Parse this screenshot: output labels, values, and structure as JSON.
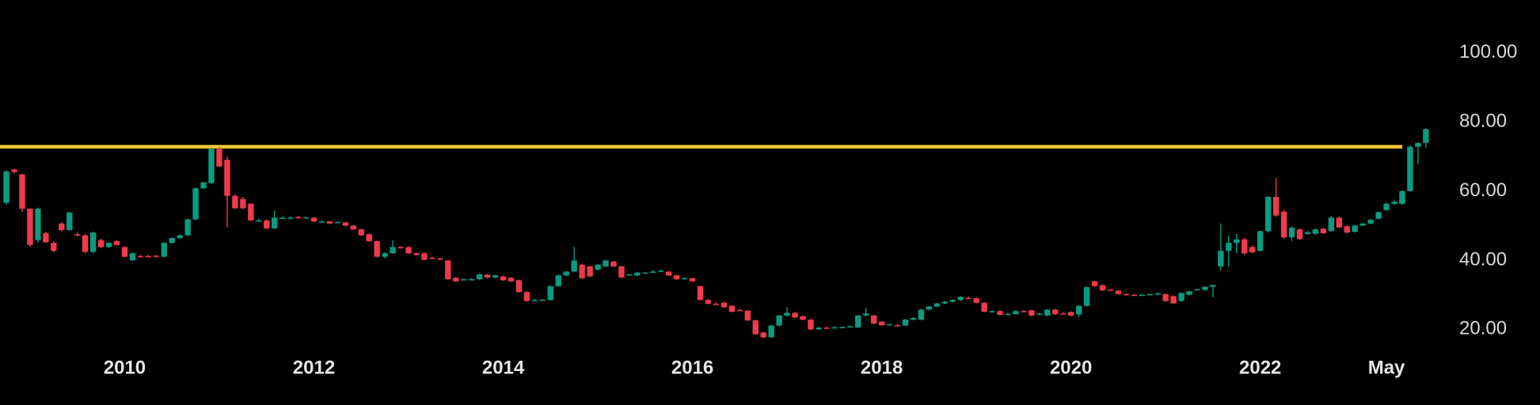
{
  "chart_data": {
    "type": "candlestick",
    "categories": [
      null,
      null,
      null,
      null,
      null,
      null,
      null,
      null,
      null,
      null,
      null,
      null,
      null,
      null,
      null,
      "2010",
      null,
      null,
      null,
      null,
      null,
      null,
      null,
      null,
      null,
      null,
      null,
      null,
      null,
      null,
      null,
      null,
      null,
      null,
      null,
      null,
      null,
      null,
      null,
      "2012",
      null,
      null,
      null,
      null,
      null,
      null,
      null,
      null,
      null,
      null,
      null,
      null,
      null,
      null,
      null,
      null,
      null,
      null,
      null,
      null,
      null,
      null,
      null,
      "2014",
      null,
      null,
      null,
      null,
      null,
      null,
      null,
      null,
      null,
      null,
      null,
      null,
      null,
      null,
      null,
      null,
      null,
      null,
      null,
      null,
      null,
      null,
      null,
      "2016",
      null,
      null,
      null,
      null,
      null,
      null,
      null,
      null,
      null,
      null,
      null,
      null,
      null,
      null,
      null,
      null,
      null,
      null,
      null,
      null,
      null,
      null,
      null,
      "2018",
      null,
      null,
      null,
      null,
      null,
      null,
      null,
      null,
      null,
      null,
      null,
      null,
      null,
      null,
      null,
      null,
      null,
      null,
      null,
      null,
      null,
      null,
      null,
      "2020",
      null,
      null,
      null,
      null,
      null,
      null,
      null,
      null,
      null,
      null,
      null,
      null,
      null,
      null,
      null,
      null,
      null,
      null,
      null,
      null,
      null,
      null,
      null,
      "2022",
      null,
      null,
      null,
      null,
      null,
      null,
      null,
      null,
      null,
      null,
      null,
      null,
      null,
      null,
      null,
      "May",
      null,
      null,
      null,
      null,
      null
    ],
    "ohlc": [
      [
        56.6,
        66,
        56,
        65.7
      ],
      [
        66.2,
        66.5,
        65,
        65.5
      ],
      [
        64.8,
        65,
        54,
        54.9
      ],
      [
        54.9,
        55,
        43.8,
        44.4
      ],
      [
        45.8,
        55.2,
        45,
        54.9
      ],
      [
        47.8,
        48.2,
        45,
        45.2
      ],
      [
        45,
        45.5,
        42.3,
        42.7
      ],
      [
        50.6,
        51,
        48.3,
        48.7
      ],
      [
        48.7,
        54,
        48.5,
        53.8
      ],
      [
        47.5,
        48,
        46.8,
        47.2
      ],
      [
        47.2,
        47.5,
        42,
        42.4
      ],
      [
        42.4,
        48.3,
        42,
        48
      ],
      [
        45.8,
        46.2,
        43.5,
        43.8
      ],
      [
        43.8,
        45.3,
        43.5,
        45
      ],
      [
        45.5,
        45.8,
        44.2,
        44.4
      ],
      [
        43.8,
        44,
        40.8,
        41
      ],
      [
        40,
        42.3,
        39.8,
        42
      ],
      [
        41.2,
        41.5,
        40.8,
        41
      ],
      [
        41.2,
        41.6,
        40.8,
        41
      ],
      [
        41.3,
        41.5,
        40.8,
        41
      ],
      [
        41,
        45.2,
        40.8,
        45
      ],
      [
        45,
        46.6,
        44.8,
        46.4
      ],
      [
        46.4,
        47.5,
        46.2,
        47.2
      ],
      [
        47.2,
        52,
        47,
        51.8
      ],
      [
        51.8,
        61,
        51.5,
        60.8
      ],
      [
        60.8,
        62.7,
        60.5,
        62.5
      ],
      [
        62.3,
        72.5,
        62,
        72.2
      ],
      [
        72.2,
        72.8,
        66.9,
        67.1
      ],
      [
        69,
        70,
        49.5,
        58.6
      ],
      [
        58.6,
        59,
        54.8,
        55
      ],
      [
        57.7,
        58.3,
        54.8,
        55
      ],
      [
        56.3,
        56.5,
        51.3,
        51.5
      ],
      [
        51.5,
        52,
        51.2,
        51.5
      ],
      [
        51.5,
        51.8,
        49,
        49.2
      ],
      [
        49.2,
        54.3,
        49,
        52.3
      ],
      [
        52.3,
        52.6,
        52,
        52.3
      ],
      [
        52.3,
        52.7,
        51.9,
        52.3
      ],
      [
        52.5,
        52.8,
        52,
        52.2
      ],
      [
        52.3,
        52.6,
        52,
        52.4
      ],
      [
        52.3,
        52.5,
        51,
        51.2
      ],
      [
        51.2,
        51.5,
        50.9,
        51.2
      ],
      [
        51.2,
        51.4,
        50.4,
        50.6
      ],
      [
        50.8,
        51.3,
        50.7,
        51
      ],
      [
        50.9,
        51.1,
        49.8,
        50
      ],
      [
        50,
        50.2,
        48.7,
        48.9
      ],
      [
        48.9,
        49.1,
        47,
        47.2
      ],
      [
        47.5,
        47.7,
        45.3,
        45.5
      ],
      [
        45.5,
        45.7,
        40.8,
        41
      ],
      [
        41,
        42.3,
        40.5,
        42
      ],
      [
        42,
        45.8,
        41.8,
        43.8
      ],
      [
        43.8,
        44,
        43.4,
        43.7
      ],
      [
        43.8,
        44,
        41.8,
        42
      ],
      [
        42,
        42.2,
        41.3,
        41.5
      ],
      [
        42,
        42.3,
        40,
        40.1
      ],
      [
        40.7,
        41,
        40.4,
        40.6
      ],
      [
        40.5,
        40.7,
        40.1,
        40.3
      ],
      [
        39.9,
        40.1,
        34.3,
        34.5
      ],
      [
        34.9,
        35.2,
        33.7,
        33.9
      ],
      [
        34.4,
        34.7,
        34.2,
        34.5
      ],
      [
        34.5,
        34.8,
        34.2,
        34.5
      ],
      [
        34.5,
        36.1,
        34.3,
        35.9
      ],
      [
        35.8,
        36,
        34.8,
        35
      ],
      [
        35,
        35.8,
        34.8,
        35.6
      ],
      [
        35.3,
        35.5,
        34,
        34.2
      ],
      [
        34.9,
        35.1,
        33.7,
        33.9
      ],
      [
        34.2,
        34.4,
        30.6,
        30.8
      ],
      [
        30.8,
        31,
        28,
        28.2
      ],
      [
        28.3,
        28.7,
        28.1,
        28.5
      ],
      [
        28.5,
        28.8,
        28.2,
        28.6
      ],
      [
        28.5,
        32.7,
        28.3,
        32.5
      ],
      [
        32.5,
        35.8,
        32.3,
        35.6
      ],
      [
        35.6,
        36.9,
        35.4,
        36.7
      ],
      [
        36.7,
        43.8,
        36.5,
        39.9
      ],
      [
        38.7,
        39,
        34.6,
        34.8
      ],
      [
        38.2,
        38.4,
        35.1,
        35.3
      ],
      [
        37.3,
        38.9,
        37,
        38.7
      ],
      [
        38.2,
        40.1,
        38,
        39.9
      ],
      [
        39.6,
        39.8,
        38,
        38.2
      ],
      [
        38.2,
        38.4,
        34.8,
        35
      ],
      [
        35.8,
        36.1,
        35.6,
        35.9
      ],
      [
        35.6,
        36.6,
        35.4,
        36.4
      ],
      [
        36.3,
        36.6,
        36.1,
        36.4
      ],
      [
        36.5,
        37.2,
        36.3,
        36.7
      ],
      [
        36.7,
        37.3,
        36.5,
        37
      ],
      [
        36.7,
        36.9,
        35.4,
        35.6
      ],
      [
        35.6,
        35.8,
        34.3,
        34.5
      ],
      [
        34.8,
        35,
        34.6,
        34.8
      ],
      [
        34.8,
        35,
        33.7,
        33.9
      ],
      [
        32.5,
        32.7,
        28.3,
        28.5
      ],
      [
        28.5,
        28.7,
        27.2,
        27.4
      ],
      [
        27.4,
        27.8,
        27.1,
        27.3
      ],
      [
        27.7,
        28,
        26.2,
        26.4
      ],
      [
        26.8,
        27,
        24.9,
        25.1
      ],
      [
        25.6,
        25.9,
        25.3,
        25.5
      ],
      [
        25.4,
        25.6,
        22.4,
        22.6
      ],
      [
        22.6,
        22.8,
        18.4,
        18.6
      ],
      [
        19.1,
        19.3,
        17.5,
        17.7
      ],
      [
        17.7,
        21.3,
        17.5,
        21.1
      ],
      [
        21.1,
        24.2,
        20.9,
        24
      ],
      [
        24,
        26.4,
        23.8,
        24.8
      ],
      [
        24.8,
        25,
        23.2,
        23.4
      ],
      [
        23.8,
        24,
        22.6,
        22.8
      ],
      [
        22.8,
        23,
        19.8,
        20
      ],
      [
        20,
        20.7,
        19.8,
        20.5
      ],
      [
        20.5,
        20.8,
        20.2,
        20.4
      ],
      [
        20.5,
        20.9,
        20.3,
        20.6
      ],
      [
        20.6,
        20.9,
        20.4,
        20.7
      ],
      [
        20.7,
        21.1,
        20.5,
        20.9
      ],
      [
        20.6,
        24.2,
        20.4,
        24
      ],
      [
        24,
        26.3,
        23.8,
        24.6
      ],
      [
        24,
        24.2,
        21.5,
        21.7
      ],
      [
        22.2,
        22.4,
        21,
        21.2
      ],
      [
        21.4,
        21.7,
        21.2,
        21.5
      ],
      [
        21.2,
        21.5,
        20.8,
        21.1
      ],
      [
        21.1,
        23,
        20.9,
        22.8
      ],
      [
        22.8,
        23.5,
        22.6,
        23.3
      ],
      [
        22.8,
        26,
        22.6,
        25.7
      ],
      [
        25.7,
        26.8,
        25.5,
        26.6
      ],
      [
        26.6,
        27.7,
        26.4,
        27.5
      ],
      [
        27.5,
        28.2,
        27.3,
        28
      ],
      [
        28,
        28.7,
        27.8,
        28.5
      ],
      [
        28.5,
        29.6,
        28.3,
        29.4
      ],
      [
        29.1,
        29.5,
        28.8,
        29
      ],
      [
        29,
        29.2,
        27.5,
        27.7
      ],
      [
        27.7,
        27.9,
        24.9,
        25.1
      ],
      [
        25.1,
        25.5,
        24.8,
        25.3
      ],
      [
        25.3,
        25.5,
        24,
        24.2
      ],
      [
        24.4,
        24.7,
        24.2,
        24.5
      ],
      [
        24.4,
        25.5,
        24.2,
        25.3
      ],
      [
        25.3,
        25.6,
        25,
        25.2
      ],
      [
        25.5,
        25.7,
        23.8,
        24
      ],
      [
        24.4,
        24.8,
        24.2,
        24.6
      ],
      [
        24,
        25.9,
        23.8,
        25.7
      ],
      [
        25.7,
        25.9,
        24.2,
        24.4
      ],
      [
        24.6,
        24.9,
        24.3,
        24.5
      ],
      [
        25,
        25.2,
        23.8,
        24
      ],
      [
        24.3,
        27,
        23.5,
        26.8
      ],
      [
        26.8,
        32.4,
        26.6,
        32.2
      ],
      [
        33.9,
        34.1,
        32.3,
        32.5
      ],
      [
        32.8,
        33,
        31.1,
        31.3
      ],
      [
        31.5,
        31.7,
        31.2,
        31.4
      ],
      [
        31.2,
        31.4,
        30,
        30.2
      ],
      [
        30.2,
        30.5,
        30,
        30.1
      ],
      [
        30,
        30.3,
        29.8,
        29.9
      ],
      [
        29.9,
        30.2,
        29.7,
        30
      ],
      [
        30.1,
        30.3,
        29.8,
        30.2
      ],
      [
        30.1,
        30.6,
        29.9,
        30.4
      ],
      [
        30.2,
        30.4,
        28,
        28.2
      ],
      [
        29.6,
        29.8,
        27.3,
        27.5
      ],
      [
        28.2,
        30.7,
        28,
        30.5
      ],
      [
        30,
        31.2,
        29.8,
        31
      ],
      [
        31.4,
        31.8,
        31.2,
        31.6
      ],
      [
        31.4,
        32.5,
        31.2,
        32.3
      ],
      [
        32.3,
        33,
        29.3,
        32.8
      ],
      [
        38.2,
        50.6,
        37,
        42.7
      ],
      [
        42.7,
        47.1,
        38,
        45
      ],
      [
        45,
        47.5,
        42,
        46
      ],
      [
        46,
        46.5,
        41.5,
        42
      ],
      [
        43.8,
        44.3,
        42,
        42.3
      ],
      [
        42.7,
        48.6,
        42.5,
        48.4
      ],
      [
        48.4,
        58.5,
        48,
        58.3
      ],
      [
        58.3,
        63.7,
        52.5,
        52.9
      ],
      [
        54,
        54.5,
        46.2,
        46.6
      ],
      [
        46.6,
        49.8,
        45.6,
        49.4
      ],
      [
        48.9,
        49.2,
        45.9,
        46.1
      ],
      [
        47.6,
        48.5,
        47.3,
        48.1
      ],
      [
        47.6,
        49.2,
        47.3,
        48.9
      ],
      [
        49.1,
        49.3,
        47.6,
        47.8
      ],
      [
        48.4,
        52.8,
        48.2,
        52.3
      ],
      [
        52.3,
        52.6,
        49.3,
        49.5
      ],
      [
        49.8,
        50,
        47.8,
        48
      ],
      [
        48.2,
        50.3,
        48,
        50
      ],
      [
        50,
        50.9,
        49.8,
        50.6
      ],
      [
        50.6,
        51.9,
        50.4,
        51.7
      ],
      [
        52,
        54.1,
        51.8,
        53.9
      ],
      [
        54.5,
        56.7,
        54.3,
        56.3
      ],
      [
        56.3,
        57.5,
        56,
        56.9
      ],
      [
        56.3,
        60.2,
        56,
        60
      ],
      [
        60,
        73.2,
        59.8,
        72.8
      ],
      [
        72.8,
        74.1,
        67.8,
        73.9
      ],
      [
        73.9,
        78.2,
        72.5,
        77.9
      ]
    ],
    "up_color": "#0b9b80",
    "down_color": "#ef3a4c",
    "hline": 72.8,
    "hline_color": "#f6c833",
    "ylim": [
      13,
      115
    ],
    "yticks": [
      {
        "value": 20,
        "label": "20.00"
      },
      {
        "value": 40,
        "label": "40.00"
      },
      {
        "value": 60,
        "label": "60.00"
      },
      {
        "value": 80,
        "label": "80.00"
      },
      {
        "value": 100,
        "label": "100.00"
      }
    ],
    "grid": false
  }
}
